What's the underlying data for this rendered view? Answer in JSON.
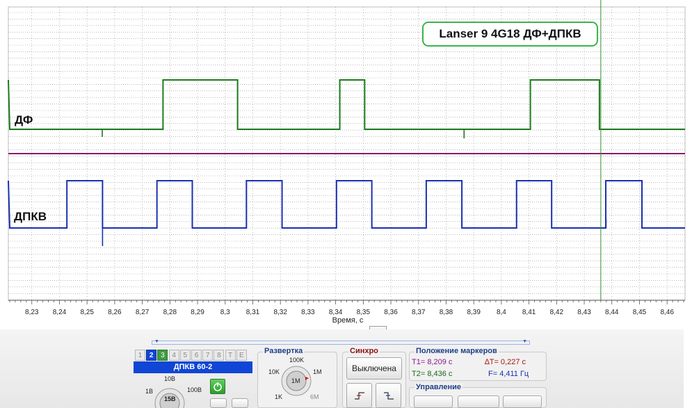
{
  "title": "Lanser 9 4G18 ДФ+ДПКВ",
  "channels": [
    {
      "label": "ДФ",
      "color": "#1c7a1c"
    },
    {
      "label": "ДПКВ",
      "color": "#1a2fb0"
    }
  ],
  "colors": {
    "grid": "#8c8c8c",
    "separator": "#8b1a6b",
    "marker": "#2e8b2e",
    "active_tab": "#1046d6"
  },
  "chart_data": {
    "type": "line",
    "title": "Lanser 9 4G18 ДФ+ДПКВ",
    "xlabel": "Время, с",
    "ylabel": "",
    "xlim": [
      8.2215,
      8.4665
    ],
    "x_ticks": [
      "8,23",
      "8,24",
      "8,25",
      "8,26",
      "8,27",
      "8,28",
      "8,29",
      "8,3",
      "8,31",
      "8,32",
      "8,33",
      "8,34",
      "8,35",
      "8,36",
      "8,37",
      "8,38",
      "8,39",
      "8,4",
      "8,41",
      "8,42",
      "8,43",
      "8,44",
      "8,45",
      "8,46"
    ],
    "grid": true,
    "marker_time": 8.436,
    "series": [
      {
        "name": "ДФ",
        "levels": [
          "low",
          "high"
        ],
        "high_intervals": [
          [
            8.2205,
            8.2215
          ],
          [
            8.2775,
            8.3045
          ],
          [
            8.3415,
            8.3505
          ],
          [
            8.4105,
            8.4355
          ]
        ]
      },
      {
        "name": "ДПКВ",
        "levels": [
          "low",
          "high"
        ],
        "high_intervals": [
          [
            8.2205,
            8.2215
          ],
          [
            8.2427,
            8.2556
          ],
          [
            8.2753,
            8.2881
          ],
          [
            8.3077,
            8.3206
          ],
          [
            8.3403,
            8.3531
          ],
          [
            8.3728,
            8.3857
          ],
          [
            8.4055,
            8.4182
          ],
          [
            8.4378,
            8.4509
          ]
        ]
      }
    ]
  },
  "panel": {
    "channel_tabs": [
      "1",
      "2",
      "3",
      "4",
      "5",
      "6",
      "7",
      "8",
      "T",
      "E"
    ],
    "active_tab": "2",
    "channel_name": "ДПКВ 60-2",
    "voltage_dial": {
      "top": "10В",
      "left": "1В",
      "right": "100В",
      "bottom": "15В"
    },
    "sweep": {
      "title": "Развертка",
      "top": "100K",
      "left": "10K",
      "right": "1M",
      "center": "1M",
      "bottom_left": "1K",
      "bottom_right": "6M"
    },
    "sync": {
      "title": "Синхро",
      "mode": "Выключена"
    },
    "markers": {
      "title": "Положение маркеров",
      "t1": "T1= 8,209 с",
      "t2": "T2= 8,436 с",
      "dt": "∆T= 0,227 с",
      "freq": "F= 4,411 Гц"
    },
    "control": {
      "title": "Управление"
    }
  }
}
